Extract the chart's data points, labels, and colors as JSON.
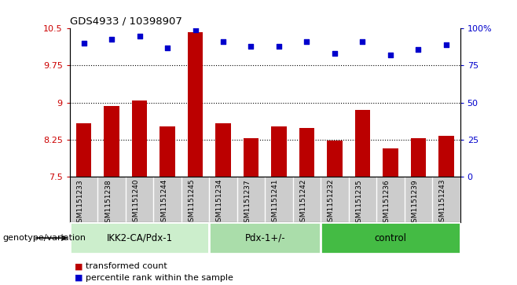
{
  "title": "GDS4933 / 10398907",
  "samples": [
    "GSM1151233",
    "GSM1151238",
    "GSM1151240",
    "GSM1151244",
    "GSM1151245",
    "GSM1151234",
    "GSM1151237",
    "GSM1151241",
    "GSM1151242",
    "GSM1151232",
    "GSM1151235",
    "GSM1151236",
    "GSM1151239",
    "GSM1151243"
  ],
  "bar_values": [
    8.58,
    8.93,
    9.05,
    8.52,
    10.43,
    8.58,
    8.28,
    8.52,
    8.48,
    8.23,
    8.85,
    8.08,
    8.28,
    8.32
  ],
  "dot_values": [
    90,
    93,
    95,
    87,
    99,
    91,
    88,
    88,
    91,
    83,
    91,
    82,
    86,
    89
  ],
  "groups": [
    {
      "label": "IKK2-CA/Pdx-1",
      "start": 0,
      "end": 5,
      "color": "#cceecc"
    },
    {
      "label": "Pdx-1+/-",
      "start": 5,
      "end": 9,
      "color": "#aaddaa"
    },
    {
      "label": "control",
      "start": 9,
      "end": 14,
      "color": "#44bb44"
    }
  ],
  "ylim_left": [
    7.5,
    10.5
  ],
  "ylim_right": [
    0,
    100
  ],
  "yticks_left": [
    7.5,
    8.25,
    9.0,
    9.75,
    10.5
  ],
  "yticks_left_labels": [
    "7.5",
    "8.25",
    "9",
    "9.75",
    "10.5"
  ],
  "yticks_right": [
    0,
    25,
    50,
    75,
    100
  ],
  "yticks_right_labels": [
    "0",
    "25",
    "50",
    "75",
    "100%"
  ],
  "hlines": [
    8.25,
    9.0,
    9.75
  ],
  "bar_color": "#bb0000",
  "dot_color": "#0000cc",
  "bar_width": 0.55,
  "xlabel_left": "genotype/variation",
  "legend_bar": "transformed count",
  "legend_dot": "percentile rank within the sample",
  "bg_plot": "#ffffff",
  "bg_xtick": "#cccccc"
}
